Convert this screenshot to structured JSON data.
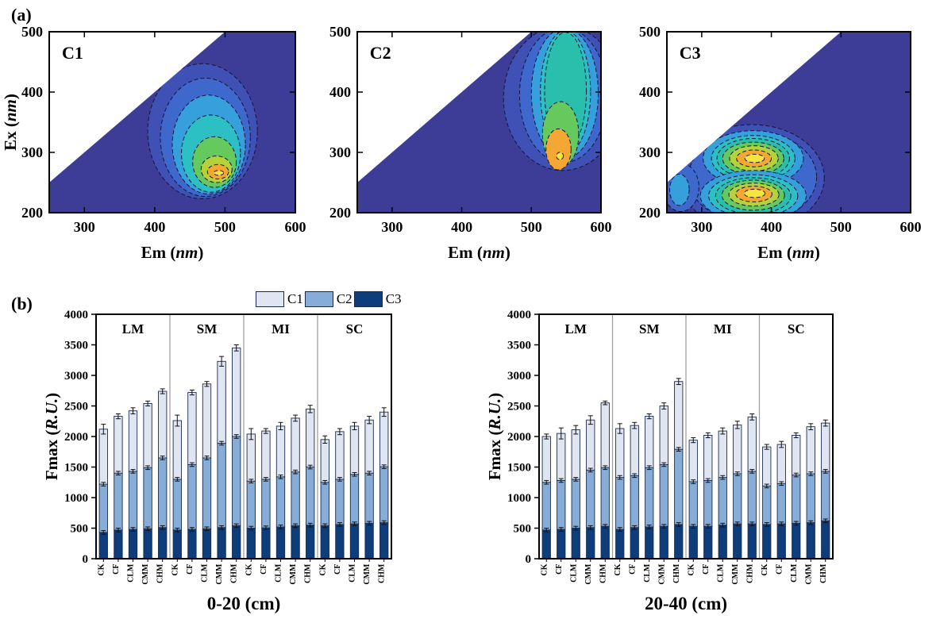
{
  "panels": {
    "a_label": "(a)",
    "b_label": "(b)"
  },
  "contour_palette": [
    "#3d3d97",
    "#3f51b5",
    "#3e68cc",
    "#35a0dc",
    "#2cbfc4",
    "#2abfad",
    "#66c95e",
    "#b3d23b",
    "#f5a733",
    "#f3e53b"
  ],
  "chart_data": [
    {
      "type": "contour",
      "label": "C1",
      "xlabel": {
        "pre": "Em (",
        "italic": "nm",
        "post": ")"
      },
      "ylabel": {
        "pre": "Ex (",
        "italic": "nm",
        "post": ")"
      },
      "xlim": [
        250,
        600
      ],
      "ylim": [
        200,
        500
      ],
      "x_ticks": [
        300,
        400,
        500,
        600
      ],
      "y_ticks": [
        200,
        300,
        400,
        500
      ],
      "peaks": [
        {
          "em": 490,
          "ex": 270
        }
      ],
      "rings": [
        [
          1,
          468,
          335,
          78,
          112
        ],
        [
          2,
          472,
          325,
          64,
          98
        ],
        [
          3,
          477,
          313,
          52,
          82
        ],
        [
          4,
          480,
          298,
          42,
          64
        ],
        [
          6,
          485,
          284,
          31,
          42
        ],
        [
          7,
          488,
          272,
          22,
          22
        ],
        [
          8,
          490,
          268,
          15,
          12
        ],
        [
          9,
          491,
          266,
          7,
          4
        ]
      ]
    },
    {
      "type": "contour",
      "label": "C2",
      "xlabel": {
        "pre": "Em (",
        "italic": "nm",
        "post": ")"
      },
      "ylabel": null,
      "xlim": [
        250,
        600
      ],
      "ylim": [
        200,
        500
      ],
      "x_ticks": [
        300,
        400,
        500,
        600
      ],
      "y_ticks": [
        200,
        300,
        400,
        500
      ],
      "peaks": [
        {
          "em": 540,
          "ex": 300
        }
      ],
      "rings": [
        [
          1,
          545,
          390,
          85,
          120
        ],
        [
          2,
          546,
          395,
          63,
          112
        ],
        [
          3,
          548,
          398,
          48,
          108
        ],
        [
          4,
          549,
          400,
          36,
          102
        ],
        [
          5,
          549,
          402,
          30,
          97
        ],
        [
          6,
          542,
          330,
          26,
          54
        ],
        [
          8,
          539,
          305,
          18,
          34
        ],
        [
          9,
          541,
          294,
          5,
          6
        ]
      ]
    },
    {
      "type": "contour",
      "label": "C3",
      "xlabel": {
        "pre": "Em (",
        "italic": "nm",
        "post": ")"
      },
      "ylabel": null,
      "xlim": [
        250,
        600
      ],
      "ylim": [
        200,
        500
      ],
      "x_ticks": [
        300,
        400,
        500,
        600
      ],
      "y_ticks": [
        200,
        300,
        400,
        500
      ],
      "peaks": [
        {
          "em": 375,
          "ex": 290
        },
        {
          "em": 375,
          "ex": 230
        }
      ],
      "rings": [
        [
          1,
          372,
          258,
          104,
          88
        ],
        [
          2,
          373,
          259,
          92,
          76
        ],
        [
          2,
          270,
          242,
          26,
          40
        ],
        [
          3,
          268,
          238,
          14,
          26
        ],
        [
          3,
          374,
          290,
          72,
          46
        ],
        [
          4,
          374,
          290,
          60,
          38
        ],
        [
          5,
          374,
          290,
          52,
          33
        ],
        [
          6,
          374,
          290,
          44,
          27
        ],
        [
          7,
          375,
          290,
          35,
          21
        ],
        [
          8,
          375,
          290,
          25,
          14
        ],
        [
          9,
          376,
          290,
          14,
          7
        ],
        [
          3,
          374,
          228,
          76,
          42
        ],
        [
          4,
          374,
          228,
          64,
          35
        ],
        [
          5,
          374,
          228,
          54,
          30
        ],
        [
          6,
          374,
          229,
          45,
          25
        ],
        [
          7,
          375,
          230,
          36,
          19
        ],
        [
          8,
          375,
          231,
          26,
          13
        ],
        [
          9,
          376,
          232,
          15,
          7
        ]
      ]
    },
    {
      "type": "stacked_bar",
      "title": "0-20 (cm)",
      "ylabel": {
        "pre": "Fmax (",
        "italic": "R.U.",
        "post": ")"
      },
      "ylim": [
        0,
        4000
      ],
      "y_tick_step": 500,
      "legend": true,
      "groups": [
        "LM",
        "SM",
        "MI",
        "SC"
      ],
      "categories": [
        "CK",
        "CF",
        "CLM",
        "CMM",
        "CHM"
      ],
      "series": [
        {
          "name": "C1",
          "color": "#dfe5f1",
          "values": [
            900,
            930,
            990,
            1050,
            1090,
            960,
            1180,
            1210,
            1340,
            1450,
            770,
            790,
            830,
            880,
            950,
            700,
            780,
            790,
            870,
            895
          ]
        },
        {
          "name": "C2",
          "color": "#85add8",
          "values": [
            790,
            930,
            950,
            1000,
            1140,
            830,
            1060,
            1160,
            1380,
            1460,
            770,
            795,
            820,
            880,
            950,
            710,
            740,
            810,
            820,
            915
          ]
        },
        {
          "name": "C3",
          "color": "#0e3d7c",
          "values": [
            430,
            470,
            480,
            490,
            510,
            470,
            480,
            490,
            510,
            540,
            500,
            505,
            520,
            540,
            550,
            540,
            560,
            570,
            580,
            590
          ]
        }
      ],
      "errors": [
        80,
        40,
        50,
        40,
        40,
        90,
        40,
        40,
        80,
        50,
        90,
        40,
        60,
        50,
        60,
        60,
        50,
        60,
        60,
        70
      ],
      "segment_error": 30
    },
    {
      "type": "stacked_bar",
      "title": "20-40 (cm)",
      "ylabel": {
        "pre": "Fmax (",
        "italic": "R.U.",
        "post": ")"
      },
      "ylim": [
        0,
        4000
      ],
      "y_tick_step": 500,
      "legend": false,
      "groups": [
        "LM",
        "SM",
        "MI",
        "SC"
      ],
      "categories": [
        "CK",
        "CF",
        "CLM",
        "CMM",
        "CHM"
      ],
      "series": [
        {
          "name": "C1",
          "color": "#dfe5f1",
          "values": [
            750,
            770,
            810,
            820,
            1060,
            800,
            820,
            840,
            960,
            1110,
            680,
            740,
            760,
            800,
            890,
            640,
            640,
            650,
            770,
            790
          ]
        },
        {
          "name": "C2",
          "color": "#85add8",
          "values": [
            780,
            800,
            800,
            940,
            960,
            850,
            850,
            970,
            1010,
            1230,
            730,
            750,
            780,
            820,
            860,
            630,
            660,
            790,
            800,
            810
          ]
        },
        {
          "name": "C3",
          "color": "#0e3d7c",
          "values": [
            470,
            480,
            500,
            510,
            530,
            480,
            510,
            520,
            530,
            560,
            530,
            530,
            550,
            570,
            570,
            560,
            570,
            580,
            590,
            620
          ]
        }
      ],
      "errors": [
        40,
        90,
        70,
        70,
        30,
        80,
        50,
        40,
        50,
        50,
        40,
        40,
        50,
        60,
        50,
        40,
        50,
        40,
        50,
        50
      ],
      "segment_error": 30
    }
  ]
}
